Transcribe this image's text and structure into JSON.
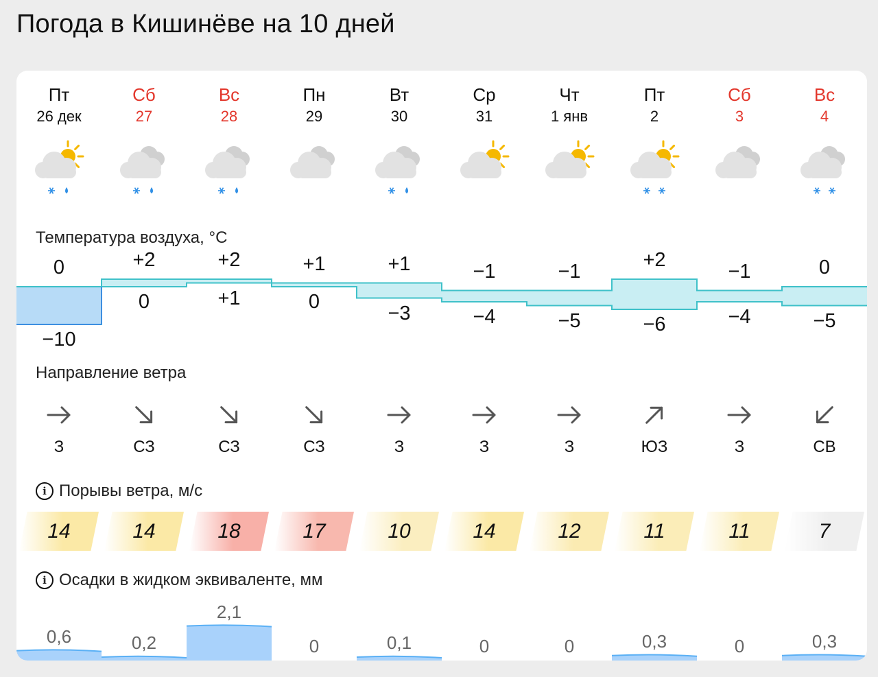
{
  "title": "Погода в Кишинёве на 10 дней",
  "days": [
    {
      "dow": "Пт",
      "date": "26 дек",
      "weekend": false,
      "icon": "partly-cloudy-sun-snow-rain-icon",
      "sun": true,
      "precip": [
        "snow",
        "rain"
      ],
      "temp_max": "0",
      "temp_min": "−10",
      "max": 0,
      "min": -10,
      "wind_dir": "З",
      "wind_arrow": "arrow-east-icon",
      "wind_angle": 0,
      "gust": "14",
      "gust_color": "#fbe9a6",
      "precip_mm": "0,6",
      "precip_val": 0.6
    },
    {
      "dow": "Сб",
      "date": "27",
      "weekend": true,
      "icon": "cloudy-snow-rain-icon",
      "sun": false,
      "precip": [
        "snow",
        "rain"
      ],
      "temp_max": "+2",
      "temp_min": "0",
      "max": 2,
      "min": 0,
      "wind_dir": "СЗ",
      "wind_arrow": "arrow-southeast-icon",
      "wind_angle": 45,
      "gust": "14",
      "gust_color": "#fbe9a6",
      "precip_mm": "0,2",
      "precip_val": 0.2
    },
    {
      "dow": "Вс",
      "date": "28",
      "weekend": true,
      "icon": "cloudy-snow-rain-icon",
      "sun": false,
      "precip": [
        "snow",
        "rain"
      ],
      "temp_max": "+2",
      "temp_min": "+1",
      "max": 2,
      "min": 1,
      "wind_dir": "СЗ",
      "wind_arrow": "arrow-southeast-icon",
      "wind_angle": 45,
      "gust": "18",
      "gust_color": "#f8b0a8",
      "precip_mm": "2,1",
      "precip_val": 2.1
    },
    {
      "dow": "Пн",
      "date": "29",
      "weekend": false,
      "icon": "cloudy-icon",
      "sun": false,
      "precip": [],
      "temp_max": "+1",
      "temp_min": "0",
      "max": 1,
      "min": 0,
      "wind_dir": "СЗ",
      "wind_arrow": "arrow-southeast-icon",
      "wind_angle": 45,
      "gust": "17",
      "gust_color": "#f8b8ae",
      "precip_mm": "0",
      "precip_val": 0
    },
    {
      "dow": "Вт",
      "date": "30",
      "weekend": false,
      "icon": "cloudy-snow-rain-icon",
      "sun": false,
      "precip": [
        "snow",
        "rain"
      ],
      "temp_max": "+1",
      "temp_min": "−3",
      "max": 1,
      "min": -3,
      "wind_dir": "З",
      "wind_arrow": "arrow-east-icon",
      "wind_angle": 0,
      "gust": "10",
      "gust_color": "#fbeec0",
      "precip_mm": "0,1",
      "precip_val": 0.1
    },
    {
      "dow": "Ср",
      "date": "31",
      "weekend": false,
      "icon": "partly-cloudy-sun-icon",
      "sun": true,
      "precip": [],
      "temp_max": "−1",
      "temp_min": "−4",
      "max": -1,
      "min": -4,
      "wind_dir": "З",
      "wind_arrow": "arrow-east-icon",
      "wind_angle": 0,
      "gust": "14",
      "gust_color": "#fbe9a6",
      "precip_mm": "0",
      "precip_val": 0
    },
    {
      "dow": "Чт",
      "date": "1 янв",
      "weekend": false,
      "icon": "partly-cloudy-sun-icon",
      "sun": true,
      "precip": [],
      "temp_max": "−1",
      "temp_min": "−5",
      "max": -1,
      "min": -5,
      "wind_dir": "З",
      "wind_arrow": "arrow-east-icon",
      "wind_angle": 0,
      "gust": "12",
      "gust_color": "#fbebb2",
      "precip_mm": "0",
      "precip_val": 0
    },
    {
      "dow": "Пт",
      "date": "2",
      "weekend": false,
      "icon": "partly-cloudy-sun-snow-icon",
      "sun": true,
      "precip": [
        "snow",
        "snow"
      ],
      "temp_max": "+2",
      "temp_min": "−6",
      "max": 2,
      "min": -6,
      "wind_dir": "ЮЗ",
      "wind_arrow": "arrow-northeast-icon",
      "wind_angle": -45,
      "gust": "11",
      "gust_color": "#fbedb8",
      "precip_mm": "0,3",
      "precip_val": 0.3
    },
    {
      "dow": "Сб",
      "date": "3",
      "weekend": true,
      "icon": "cloudy-icon",
      "sun": false,
      "precip": [],
      "temp_max": "−1",
      "temp_min": "−4",
      "max": -1,
      "min": -4,
      "wind_dir": "З",
      "wind_arrow": "arrow-east-icon",
      "wind_angle": 0,
      "gust": "11",
      "gust_color": "#fbedb8",
      "precip_mm": "0",
      "precip_val": 0
    },
    {
      "dow": "Вс",
      "date": "4",
      "weekend": true,
      "icon": "cloudy-snow-icon",
      "sun": false,
      "precip": [
        "snow",
        "snow"
      ],
      "temp_max": "0",
      "temp_min": "−5",
      "max": 0,
      "min": -5,
      "wind_dir": "СВ",
      "wind_arrow": "arrow-southwest-icon",
      "wind_angle": 135,
      "gust": "7",
      "gust_color": "#efefef",
      "precip_mm": "0,3",
      "precip_val": 0.3
    }
  ],
  "sections": {
    "temperature": "Температура воздуха, °C",
    "wind_direction": "Направление ветра",
    "wind_gusts": "Порывы ветра, м/с",
    "precipitation": "Осадки в жидком эквиваленте, мм"
  },
  "colors": {
    "weekend": "#e3372c",
    "temp_band": "#c9eef3",
    "temp_band_cold": "#b7dbf7",
    "temp_line": "#3fc1c9",
    "temp_line_cold": "#3d8fe0",
    "precip_fill": "#a9d2fb",
    "precip_line": "#5ab0f5",
    "snow": "#2f8fe6",
    "sun": "#f5b800",
    "cloud": "#e2e2e2"
  }
}
